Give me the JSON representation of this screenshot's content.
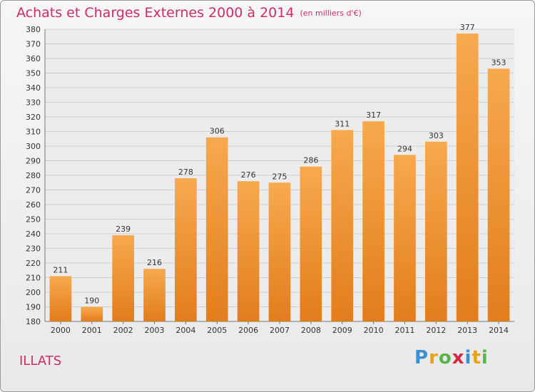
{
  "chart_data": {
    "type": "bar",
    "title": "Achats et Charges Externes 2000 à 2014",
    "subtitle": "(en milliers d'€)",
    "categories": [
      "2000",
      "2001",
      "2002",
      "2003",
      "2004",
      "2005",
      "2006",
      "2007",
      "2008",
      "2009",
      "2010",
      "2011",
      "2012",
      "2013",
      "2014"
    ],
    "values": [
      211,
      190,
      239,
      216,
      278,
      306,
      276,
      275,
      286,
      311,
      317,
      294,
      303,
      377,
      353
    ],
    "xlabel": "",
    "ylabel": "",
    "ylim": [
      180,
      380
    ],
    "ytick_step": 10,
    "grid": true,
    "colors": {
      "bar_light": "#f7a94e",
      "bar_dark": "#e27d1c",
      "grid": "#cfcfcf",
      "title": "#d02a68"
    }
  },
  "footer": {
    "commune": "ILLATS",
    "brand_letters": [
      {
        "char": "P",
        "color": "#3d8fd4"
      },
      {
        "char": "r",
        "color": "#e8a21a"
      },
      {
        "char": "o",
        "color": "#5ab54a"
      },
      {
        "char": "x",
        "color": "#d7263d"
      },
      {
        "char": "i",
        "color": "#3d8fd4"
      },
      {
        "char": "t",
        "color": "#e8a21a"
      },
      {
        "char": "i",
        "color": "#5ab54a"
      }
    ]
  }
}
